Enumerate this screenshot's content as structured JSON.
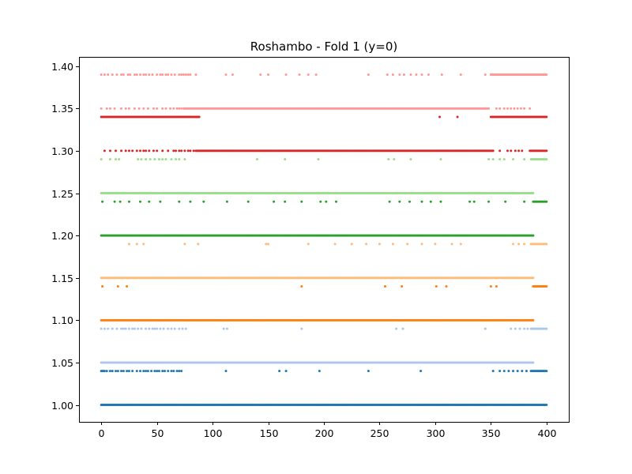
{
  "chart_data": {
    "type": "scatter",
    "title": "Roshambo - Fold 1 (y=0)",
    "xlabel": "",
    "ylabel": "",
    "xlim": [
      -20,
      420
    ],
    "ylim": [
      0.98,
      1.41
    ],
    "xticks": [
      0,
      50,
      100,
      150,
      200,
      250,
      300,
      350,
      400
    ],
    "yticks": [
      1.0,
      1.05,
      1.1,
      1.15,
      1.2,
      1.25,
      1.3,
      1.35,
      1.4
    ],
    "ytick_labels": [
      "1.00",
      "1.05",
      "1.10",
      "1.15",
      "1.20",
      "1.25",
      "1.30",
      "1.35",
      "1.40"
    ],
    "xtick_labels": [
      "0",
      "50",
      "100",
      "150",
      "200",
      "250",
      "300",
      "350",
      "400"
    ],
    "grid": false,
    "series": [
      {
        "color": "#1f77b4",
        "primary_y": 1.0,
        "secondary_y": 1.04,
        "primary_x": [
          [
            0,
            400
          ],
          [
            75,
            388
          ]
        ],
        "primary_sparse": [
          0,
          3,
          6,
          10,
          12,
          15,
          20,
          28,
          30,
          33,
          35,
          38,
          40,
          42,
          45,
          48,
          50,
          53,
          55,
          58,
          60,
          62,
          65,
          68
        ],
        "secondary_x": [
          [
            0,
            3
          ],
          [
            386,
            400
          ]
        ],
        "secondary_sparse": [
          5,
          8,
          10,
          13,
          15,
          18,
          20,
          23,
          25,
          28,
          32,
          35,
          38,
          40,
          42,
          45,
          48,
          50,
          52,
          55,
          57,
          60,
          63,
          65,
          68,
          70,
          72,
          112,
          160,
          166,
          196,
          240,
          287,
          352,
          358,
          362,
          366,
          370,
          374,
          378,
          382
        ]
      },
      {
        "color": "#aec7e8",
        "primary_y": 1.05,
        "secondary_y": 1.09,
        "primary_x": [
          [
            0,
            388
          ]
        ],
        "primary_sparse": [],
        "secondary_x": [
          [
            386,
            400
          ]
        ],
        "secondary_sparse": [
          0,
          3,
          6,
          10,
          14,
          18,
          20,
          22,
          25,
          28,
          30,
          33,
          36,
          40,
          43,
          46,
          48,
          50,
          53,
          56,
          60,
          63,
          66,
          70,
          73,
          76,
          110,
          113,
          180,
          265,
          271,
          345,
          368,
          372,
          376,
          380,
          383
        ]
      },
      {
        "color": "#ff7f0e",
        "primary_y": 1.1,
        "secondary_y": 1.14,
        "primary_x": [
          [
            0,
            388
          ]
        ],
        "primary_sparse": [],
        "secondary_x": [
          [
            388,
            400
          ]
        ],
        "secondary_sparse": [
          1,
          15,
          23,
          180,
          255,
          270,
          301,
          310,
          350,
          355
        ]
      },
      {
        "color": "#ffbb78",
        "primary_y": 1.15,
        "secondary_y": 1.19,
        "primary_x": [
          [
            0,
            388
          ]
        ],
        "primary_sparse": [],
        "secondary_x": [
          [
            386,
            400
          ]
        ],
        "secondary_sparse": [
          25,
          32,
          38,
          75,
          87,
          148,
          150,
          186,
          210,
          225,
          238,
          250,
          262,
          275,
          288,
          300,
          315,
          323,
          370,
          375,
          380
        ]
      },
      {
        "color": "#2ca02c",
        "primary_y": 1.2,
        "secondary_y": 1.24,
        "primary_x": [
          [
            0,
            388
          ]
        ],
        "primary_sparse": [],
        "secondary_x": [
          [
            388,
            400
          ]
        ],
        "secondary_sparse": [
          1,
          12,
          17,
          25,
          35,
          43,
          53,
          70,
          80,
          92,
          113,
          132,
          155,
          165,
          180,
          197,
          202,
          211,
          259,
          268,
          277,
          288,
          296,
          305,
          331,
          335,
          348,
          363,
          380
        ]
      },
      {
        "color": "#98df8a",
        "primary_y": 1.25,
        "secondary_y": 1.29,
        "primary_x": [
          [
            0,
            388
          ]
        ],
        "primary_sparse": [],
        "secondary_x": [
          [
            386,
            400
          ]
        ],
        "secondary_sparse": [
          0,
          8,
          13,
          16,
          33,
          36,
          40,
          44,
          48,
          52,
          55,
          58,
          63,
          67,
          70,
          75,
          140,
          165,
          195,
          258,
          263,
          278,
          305,
          348,
          352,
          358,
          362,
          370,
          380
        ]
      },
      {
        "color": "#d62728",
        "primary_y": 1.3,
        "secondary_y": 1.34,
        "primary_x": [
          [
            85,
            352
          ],
          [
            385,
            400
          ]
        ],
        "primary_sparse": [
          3,
          8,
          13,
          18,
          22,
          25,
          28,
          32,
          35,
          38,
          40,
          43,
          47,
          50,
          55,
          60,
          65,
          67,
          70,
          72,
          75,
          78,
          80,
          83,
          358,
          365,
          368,
          372,
          375,
          378
        ],
        "secondary_x": [
          [
            0,
            88
          ],
          [
            350,
            400
          ]
        ],
        "secondary_sparse": [
          304,
          320
        ]
      },
      {
        "color": "#ff9896",
        "primary_y": 1.35,
        "secondary_y": 1.39,
        "primary_x": [
          [
            74,
            348
          ]
        ],
        "primary_sparse": [
          0,
          5,
          8,
          12,
          18,
          22,
          25,
          30,
          34,
          38,
          42,
          47,
          50,
          55,
          58,
          62,
          65,
          68,
          70,
          72,
          355,
          358,
          362,
          365,
          368,
          371,
          374,
          377,
          380,
          385
        ],
        "secondary_x": [
          [
            350,
            400
          ]
        ],
        "secondary_sparse": [
          0,
          3,
          6,
          10,
          14,
          18,
          20,
          24,
          26,
          30,
          32,
          35,
          38,
          40,
          43,
          46,
          50,
          53,
          55,
          58,
          60,
          63,
          66,
          70,
          72,
          74,
          76,
          78,
          80,
          85,
          112,
          118,
          143,
          150,
          166,
          178,
          186,
          193,
          240,
          257,
          262,
          268,
          272,
          278,
          283,
          288,
          294,
          306,
          323,
          345
        ]
      }
    ]
  }
}
